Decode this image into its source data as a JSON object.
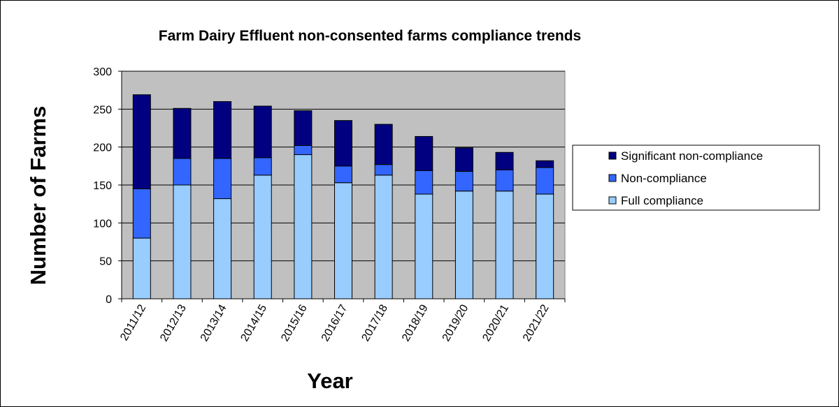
{
  "chart_data": {
    "type": "bar",
    "stacked": true,
    "title": "Farm Dairy Effluent non-consented farms compliance trends",
    "xlabel": "Year",
    "ylabel": "Number of Farms",
    "ylim": [
      0,
      300
    ],
    "yticks": [
      0,
      50,
      100,
      150,
      200,
      250,
      300
    ],
    "grid": true,
    "legend_position": "right",
    "categories": [
      "2011/12",
      "2012/13",
      "2013/14",
      "2014/15",
      "2015/16",
      "2016/17",
      "2017/18",
      "2018/19",
      "2019/20",
      "2020/21",
      "2021/22"
    ],
    "series": [
      {
        "name": "Full compliance",
        "color": "#99ccff",
        "values": [
          80,
          150,
          132,
          163,
          190,
          153,
          163,
          138,
          142,
          142,
          138
        ]
      },
      {
        "name": "Non-compliance",
        "color": "#3366ff",
        "values": [
          65,
          35,
          53,
          23,
          12,
          22,
          14,
          31,
          26,
          28,
          35
        ]
      },
      {
        "name": "Significant non-compliance",
        "color": "#000080",
        "values": [
          124,
          66,
          75,
          68,
          46,
          60,
          53,
          45,
          31,
          23,
          9
        ]
      }
    ],
    "legend_order": [
      "Significant non-compliance",
      "Non-compliance",
      "Full compliance"
    ],
    "plot_background": "#c0c0c0"
  }
}
